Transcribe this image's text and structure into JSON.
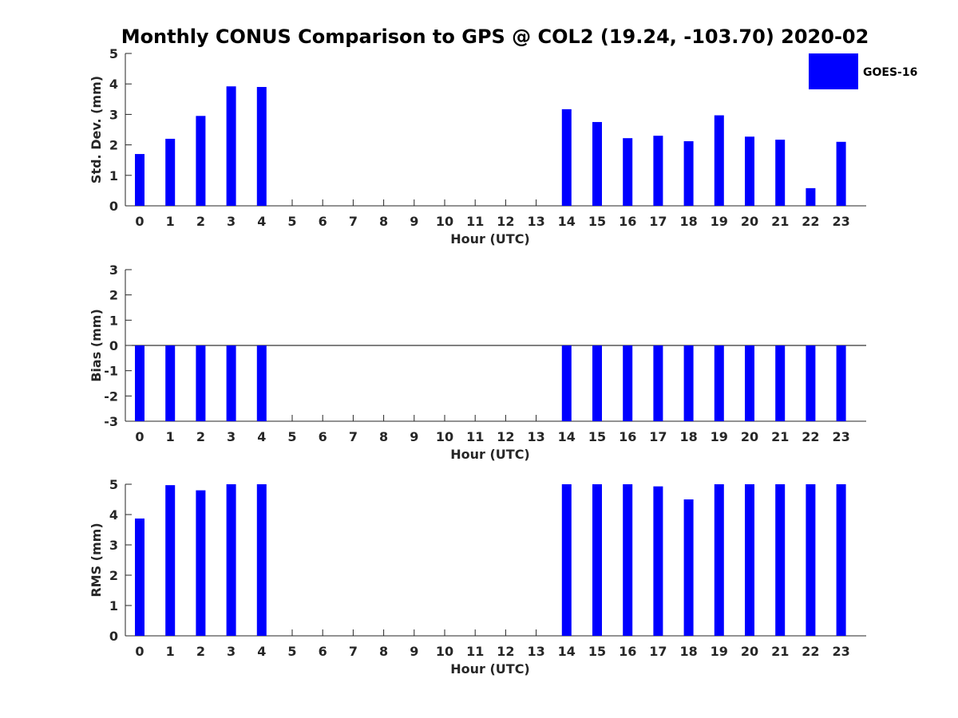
{
  "title": "Monthly CONUS Comparison to GPS @ COL2 (19.24, -103.70) 2020-02",
  "legend": {
    "label": "GOES-16",
    "color": "#0000ff",
    "placement": "top-right"
  },
  "chart_data": [
    {
      "type": "bar",
      "name": "std_dev",
      "xlabel": "Hour (UTC)",
      "ylabel": "Std. Dev. (mm)",
      "ylim": [
        0,
        5
      ],
      "yticks": [
        "0",
        "1",
        "2",
        "3",
        "4",
        "5"
      ],
      "categories": [
        "0",
        "1",
        "2",
        "3",
        "4",
        "5",
        "6",
        "7",
        "8",
        "9",
        "10",
        "11",
        "12",
        "13",
        "14",
        "15",
        "16",
        "17",
        "18",
        "19",
        "20",
        "21",
        "22",
        "23"
      ],
      "series": [
        {
          "name": "GOES-16",
          "color": "#0000ff",
          "values": [
            1.7,
            2.2,
            2.95,
            3.92,
            3.9,
            null,
            null,
            null,
            null,
            null,
            null,
            null,
            null,
            null,
            3.17,
            2.75,
            2.22,
            2.3,
            2.12,
            2.97,
            2.27,
            2.17,
            0.58,
            2.1
          ]
        }
      ]
    },
    {
      "type": "bar",
      "name": "bias",
      "xlabel": "Hour (UTC)",
      "ylabel": "Bias (mm)",
      "ylim": [
        -3,
        3
      ],
      "yticks": [
        "-3",
        "-2",
        "-1",
        "0",
        "1",
        "2",
        "3"
      ],
      "categories": [
        "0",
        "1",
        "2",
        "3",
        "4",
        "5",
        "6",
        "7",
        "8",
        "9",
        "10",
        "11",
        "12",
        "13",
        "14",
        "15",
        "16",
        "17",
        "18",
        "19",
        "20",
        "21",
        "22",
        "23"
      ],
      "series": [
        {
          "name": "GOES-16",
          "color": "#0000ff",
          "values": [
            -3,
            -3,
            -3,
            -3,
            -3,
            null,
            null,
            null,
            null,
            null,
            null,
            null,
            null,
            null,
            -3,
            -3,
            -3,
            -3,
            -3,
            -3,
            -3,
            -3,
            -3,
            -3
          ]
        }
      ]
    },
    {
      "type": "bar",
      "name": "rms",
      "xlabel": "Hour (UTC)",
      "ylabel": "RMS (mm)",
      "ylim": [
        0,
        5
      ],
      "yticks": [
        "0",
        "1",
        "2",
        "3",
        "4",
        "5"
      ],
      "categories": [
        "0",
        "1",
        "2",
        "3",
        "4",
        "5",
        "6",
        "7",
        "8",
        "9",
        "10",
        "11",
        "12",
        "13",
        "14",
        "15",
        "16",
        "17",
        "18",
        "19",
        "20",
        "21",
        "22",
        "23"
      ],
      "series": [
        {
          "name": "GOES-16",
          "color": "#0000ff",
          "values": [
            3.87,
            4.97,
            4.8,
            5,
            5,
            null,
            null,
            null,
            null,
            null,
            null,
            null,
            null,
            null,
            5,
            5,
            5,
            4.93,
            4.5,
            5,
            5,
            5,
            5,
            5
          ]
        }
      ]
    }
  ]
}
